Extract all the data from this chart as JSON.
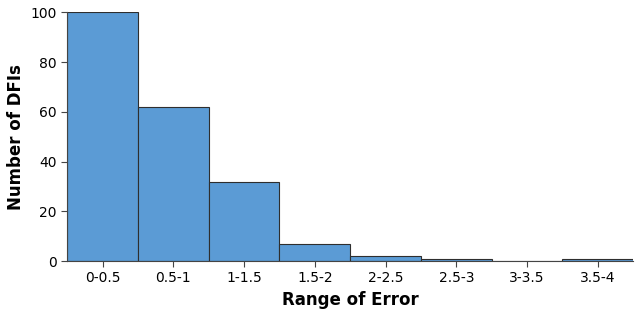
{
  "categories": [
    "0-0.5",
    "0.5-1",
    "1-1.5",
    "1.5-2",
    "2-2.5",
    "2.5-3",
    "3-3.5",
    "3.5-4"
  ],
  "values": [
    100,
    62,
    32,
    7,
    2,
    1,
    0,
    1
  ],
  "bar_color": "#5b9bd5",
  "bar_edge_color": "#2e2e2e",
  "bar_edge_width": 0.8,
  "xlabel": "Range of Error",
  "ylabel": "Number of DFIs",
  "ylim": [
    0,
    100
  ],
  "yticks": [
    0,
    20,
    40,
    60,
    80,
    100
  ],
  "xlabel_fontsize": 12,
  "ylabel_fontsize": 12,
  "tick_fontsize": 10,
  "background_color": "#ffffff",
  "bar_width": 1.0
}
